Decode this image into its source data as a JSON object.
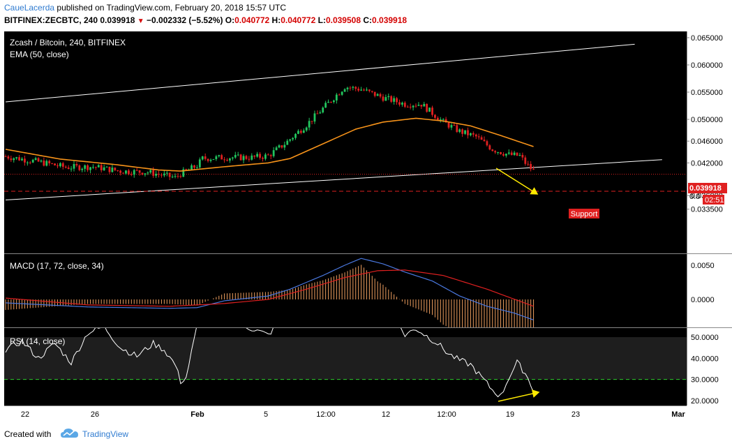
{
  "header": {
    "author": "CaueLacerda",
    "published_text": "published on TradingView.com, February 20, 2018 15:57 UTC",
    "symbol": "BITFINEX:ZECBTC, 240",
    "price": "0.039918",
    "change": "−0.002332 (−5.52%)",
    "o_label": "O:",
    "o_value": "0.040772",
    "h_label": "H:",
    "h_value": "0.040772",
    "l_label": "L:",
    "l_value": "0.039508",
    "c_label": "C:",
    "c_value": "0.039918"
  },
  "footer": {
    "created_with": "Created with",
    "brand": "TradingView"
  },
  "colors": {
    "background": "#000000",
    "up": "#22c55e",
    "down": "#e02020",
    "ema": "#f7931a",
    "macd": "#4a78e0",
    "signal": "#e02020",
    "histogram": "#f0a060",
    "rsi": "#ffffff",
    "channel": "#ffffff",
    "price_line": "#e02020",
    "support": "#e02020",
    "rsi_band": "#1e1e1e",
    "rsi_level": "#2fcf2f",
    "arrow": "#ffea00",
    "axis_text": "#000000"
  },
  "chart_data": [
    {
      "type": "candlestick",
      "title": "Zcash / Bitcoin, 240, BITFINEX",
      "indicator": "EMA (50, close)",
      "y_ticks": [
        "0.065000",
        "0.060000",
        "0.055000",
        "0.050000",
        "0.046000",
        "0.042000",
        "0.036000",
        "0.033500"
      ],
      "x_ticks": [
        "22",
        "26",
        "Feb",
        "5",
        "12:00",
        "12",
        "12:00",
        "19",
        "23",
        "Mar"
      ],
      "last_price_label": "0.039918",
      "partial_label": "0.0",
      "countdown": "02:51",
      "support_label": "Support",
      "price_key_points": [
        [
          0,
          0.0432
        ],
        [
          12,
          0.0422
        ],
        [
          22,
          0.0412
        ],
        [
          32,
          0.0413
        ],
        [
          42,
          0.0405
        ],
        [
          52,
          0.0403
        ],
        [
          62,
          0.0393
        ],
        [
          64,
          0.04
        ],
        [
          70,
          0.0415
        ],
        [
          72,
          0.0428
        ],
        [
          80,
          0.043
        ],
        [
          90,
          0.043
        ],
        [
          96,
          0.0433
        ],
        [
          102,
          0.0455
        ],
        [
          110,
          0.049
        ],
        [
          116,
          0.052
        ],
        [
          124,
          0.056
        ],
        [
          130,
          0.0555
        ],
        [
          138,
          0.054
        ],
        [
          146,
          0.0528
        ],
        [
          152,
          0.0528
        ],
        [
          160,
          0.0495
        ],
        [
          166,
          0.0478
        ],
        [
          172,
          0.0468
        ],
        [
          178,
          0.0445
        ],
        [
          184,
          0.0435
        ],
        [
          188,
          0.0433
        ],
        [
          190,
          0.042
        ],
        [
          193,
          0.0405
        ]
      ],
      "ema_points": [
        [
          0,
          0.0445
        ],
        [
          20,
          0.0427
        ],
        [
          40,
          0.0417
        ],
        [
          56,
          0.0407
        ],
        [
          64,
          0.0405
        ],
        [
          80,
          0.0413
        ],
        [
          96,
          0.042
        ],
        [
          104,
          0.0428
        ],
        [
          116,
          0.0455
        ],
        [
          128,
          0.0482
        ],
        [
          138,
          0.0495
        ],
        [
          150,
          0.0502
        ],
        [
          160,
          0.0497
        ],
        [
          170,
          0.0488
        ],
        [
          180,
          0.0472
        ],
        [
          193,
          0.045
        ]
      ],
      "channel_upper": [
        [
          0,
          0.0532
        ],
        [
          230,
          0.0638
        ]
      ],
      "channel_lower": [
        [
          0,
          0.0352
        ],
        [
          240,
          0.0426
        ]
      ],
      "support_level": 0.0368,
      "last_price": 0.039918
    },
    {
      "type": "line",
      "title": "MACD (17, 72, close, 34)",
      "y_ticks": [
        "0.0050",
        "0.0000"
      ],
      "series": [
        {
          "name": "MACD",
          "points": [
            [
              0,
              -0.0005
            ],
            [
              30,
              -0.0011
            ],
            [
              60,
              -0.0013
            ],
            [
              70,
              -0.0012
            ],
            [
              80,
              -0.0002
            ],
            [
              96,
              0.0005
            ],
            [
              104,
              0.0015
            ],
            [
              116,
              0.0035
            ],
            [
              124,
              0.005
            ],
            [
              130,
              0.006
            ],
            [
              138,
              0.0052
            ],
            [
              146,
              0.004
            ],
            [
              156,
              0.0027
            ],
            [
              166,
              0.0005
            ],
            [
              176,
              -0.001
            ],
            [
              186,
              -0.002
            ],
            [
              193,
              -0.003
            ]
          ]
        },
        {
          "name": "Signal",
          "points": [
            [
              0,
              0.0002
            ],
            [
              30,
              -0.0008
            ],
            [
              60,
              -0.001
            ],
            [
              80,
              -0.0006
            ],
            [
              96,
              0.0
            ],
            [
              110,
              0.0015
            ],
            [
              124,
              0.0032
            ],
            [
              136,
              0.0042
            ],
            [
              146,
              0.0043
            ],
            [
              160,
              0.0035
            ],
            [
              176,
              0.0015
            ],
            [
              193,
              -0.001
            ]
          ]
        }
      ]
    },
    {
      "type": "line",
      "title": "RSI (14, close)",
      "y_ticks": [
        "50.0000",
        "40.0000",
        "30.0000",
        "20.0000"
      ],
      "series": [
        {
          "name": "RSI",
          "points": [
            [
              0,
              44
            ],
            [
              6,
              48
            ],
            [
              12,
              40
            ],
            [
              18,
              47
            ],
            [
              24,
              38
            ],
            [
              30,
              52
            ],
            [
              36,
              55
            ],
            [
              42,
              45
            ],
            [
              48,
              41
            ],
            [
              54,
              47
            ],
            [
              58,
              44
            ],
            [
              62,
              37
            ],
            [
              64,
              29
            ],
            [
              66,
              31
            ],
            [
              70,
              55
            ],
            [
              78,
              62
            ],
            [
              84,
              62
            ],
            [
              88,
              55
            ],
            [
              94,
              52
            ],
            [
              96,
              51
            ],
            [
              100,
              57
            ],
            [
              106,
              66
            ],
            [
              114,
              70
            ],
            [
              122,
              74
            ],
            [
              130,
              67
            ],
            [
              138,
              63
            ],
            [
              144,
              55
            ],
            [
              146,
              51
            ],
            [
              150,
              54
            ],
            [
              158,
              47
            ],
            [
              162,
              42
            ],
            [
              166,
              39
            ],
            [
              170,
              37
            ],
            [
              174,
              31
            ],
            [
              178,
              25
            ],
            [
              181,
              22
            ],
            [
              184,
              31
            ],
            [
              187,
              38
            ],
            [
              190,
              33
            ],
            [
              193,
              25
            ]
          ]
        }
      ],
      "level": 30
    }
  ]
}
